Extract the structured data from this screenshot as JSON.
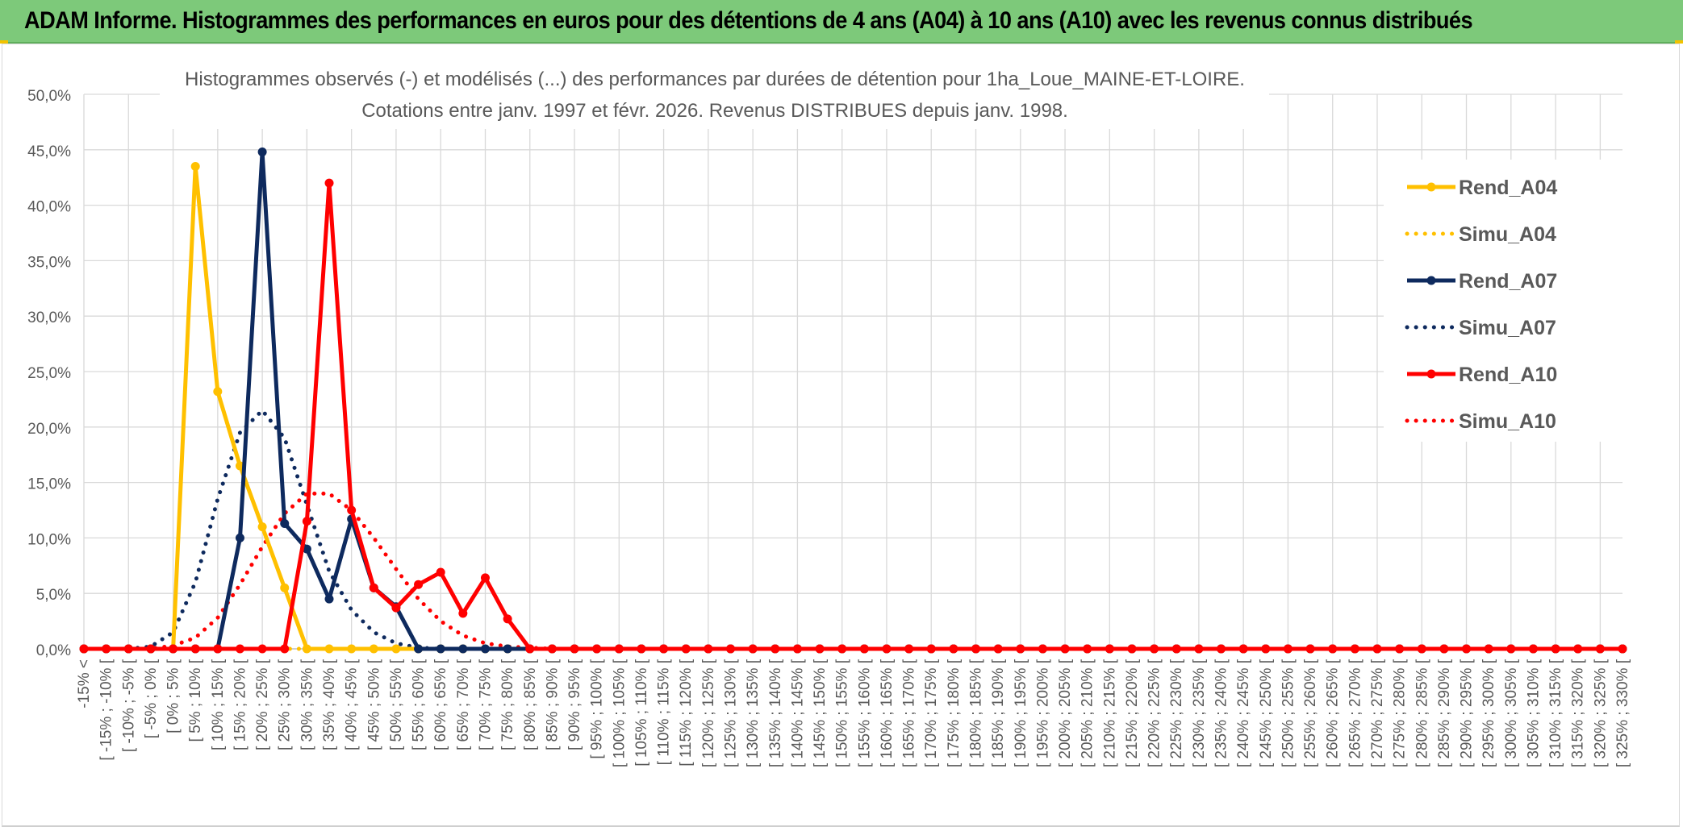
{
  "banner": {
    "title": "ADAM Informe. Histogrammes des performances en euros pour des détentions de 4 ans (A04) à 10 ans (A10) avec les revenus connus distribués"
  },
  "chart_data": {
    "type": "line",
    "title": "Histogrammes observés (-) et modélisés (...) des performances par durées de détention pour 1ha_Loue_MAINE-ET-LOIRE.",
    "subtitle": "Cotations entre janv. 1997 et févr. 2026.  Revenus DISTRIBUES depuis janv. 1998.",
    "xlabel": "",
    "ylabel": "",
    "ylim": [
      0,
      0.5
    ],
    "yticks": [
      "0,0%",
      "5,0%",
      "10,0%",
      "15,0%",
      "20,0%",
      "25,0%",
      "30,0%",
      "35,0%",
      "40,0%",
      "45,0%",
      "50,0%"
    ],
    "grid": true,
    "legend_position": "right",
    "categories": [
      "-15% <",
      "[ -15% ; -10% [",
      "[ -10% ; -5% [",
      "[ -5% ; 0% [",
      "[ 0% ; 5% [",
      "[ 5% ; 10% [",
      "[ 10% ; 15% [",
      "[ 15% ; 20% [",
      "[ 20% ; 25% [",
      "[ 25% ; 30% [",
      "[ 30% ; 35% [",
      "[ 35% ; 40% [",
      "[ 40% ; 45% [",
      "[ 45% ; 50% [",
      "[ 50% ; 55% [",
      "[ 55% ; 60% [",
      "[ 60% ; 65% [",
      "[ 65% ; 70% [",
      "[ 70% ; 75% [",
      "[ 75% ; 80% [",
      "[ 80% ; 85% [",
      "[ 85% ; 90% [",
      "[ 90% ; 95% [",
      "[ 95% ; 100% [",
      "[ 100% ; 105% [",
      "[ 105% ; 110% [",
      "[ 110% ; 115% [",
      "[ 115% ; 120% [",
      "[ 120% ; 125% [",
      "[ 125% ; 130% [",
      "[ 130% ; 135% [",
      "[ 135% ; 140% [",
      "[ 140% ; 145% [",
      "[ 145% ; 150% [",
      "[ 150% ; 155% [",
      "[ 155% ; 160% [",
      "[ 160% ; 165% [",
      "[ 165% ; 170% [",
      "[ 170% ; 175% [",
      "[ 175% ; 180% [",
      "[ 180% ; 185% [",
      "[ 185% ; 190% [",
      "[ 190% ; 195% [",
      "[ 195% ; 200% [",
      "[ 200% ; 205% [",
      "[ 205% ; 210% [",
      "[ 210% ; 215% [",
      "[ 215% ; 220% [",
      "[ 220% ; 225% [",
      "[ 225% ; 230% [",
      "[ 230% ; 235% [",
      "[ 235% ; 240% [",
      "[ 240% ; 245% [",
      "[ 245% ; 250% [",
      "[ 250% ; 255% [",
      "[ 255% ; 260% [",
      "[ 260% ; 265% [",
      "[ 265% ; 270% [",
      "[ 270% ; 275% [",
      "[ 275% ; 280% [",
      "[ 280% ; 285% [",
      "[ 285% ; 290% [",
      "[ 290% ; 295% [",
      "[ 295% ; 300% [",
      "[ 300% ; 305% [",
      "[ 305% ; 310% [",
      "[ 310% ; 315% [",
      "[ 315% ; 320% [",
      "[ 320% ; 325% [",
      "[ 325% ; 330% ["
    ],
    "series": [
      {
        "name": "Rend_A04",
        "style": "solid",
        "color": "#ffc000",
        "values": [
          0,
          0,
          0,
          0,
          0,
          0.435,
          0.232,
          0.165,
          0.11,
          0.055,
          0,
          0,
          0,
          0,
          0,
          0,
          0,
          0,
          0,
          0,
          0,
          0,
          0,
          0,
          0,
          0,
          0,
          0,
          0,
          0,
          0,
          0,
          0,
          0,
          0,
          0,
          0,
          0,
          0,
          0,
          0,
          0,
          0,
          0,
          0,
          0,
          0,
          0,
          0,
          0,
          0,
          0,
          0,
          0,
          0,
          0,
          0,
          0,
          0,
          0,
          0,
          0,
          0,
          0,
          0,
          0,
          0,
          0,
          0,
          0
        ]
      },
      {
        "name": "Simu_A04",
        "style": "dotted",
        "color": "#ffc000",
        "values": [
          0,
          0,
          0,
          0,
          0,
          0,
          0,
          0,
          0,
          0,
          0,
          0,
          0,
          0,
          0,
          0,
          0,
          0,
          0,
          0,
          0,
          0,
          0,
          0,
          0,
          0,
          0,
          0,
          0,
          0,
          0,
          0,
          0,
          0,
          0,
          0,
          0,
          0,
          0,
          0,
          0,
          0,
          0,
          0,
          0,
          0,
          0,
          0,
          0,
          0,
          0,
          0,
          0,
          0,
          0,
          0,
          0,
          0,
          0,
          0,
          0,
          0,
          0,
          0,
          0,
          0,
          0,
          0,
          0,
          0
        ]
      },
      {
        "name": "Rend_A07",
        "style": "solid",
        "color": "#0e2a5e",
        "values": [
          0,
          0,
          0,
          0,
          0,
          0,
          0,
          0.1,
          0.448,
          0.113,
          0.09,
          0.045,
          0.117,
          0.055,
          0.038,
          0,
          0,
          0,
          0,
          0,
          0,
          0,
          0,
          0,
          0,
          0,
          0,
          0,
          0,
          0,
          0,
          0,
          0,
          0,
          0,
          0,
          0,
          0,
          0,
          0,
          0,
          0,
          0,
          0,
          0,
          0,
          0,
          0,
          0,
          0,
          0,
          0,
          0,
          0,
          0,
          0,
          0,
          0,
          0,
          0,
          0,
          0,
          0,
          0,
          0,
          0,
          0,
          0,
          0,
          0
        ]
      },
      {
        "name": "Simu_A07",
        "style": "dotted",
        "color": "#0e2a5e",
        "values": [
          0,
          0,
          0,
          0.002,
          0.015,
          0.06,
          0.135,
          0.195,
          0.215,
          0.19,
          0.13,
          0.07,
          0.035,
          0.015,
          0.005,
          0.001,
          0,
          0,
          0,
          0,
          0,
          0,
          0,
          0,
          0,
          0,
          0,
          0,
          0,
          0,
          0,
          0,
          0,
          0,
          0,
          0,
          0,
          0,
          0,
          0,
          0,
          0,
          0,
          0,
          0,
          0,
          0,
          0,
          0,
          0,
          0,
          0,
          0,
          0,
          0,
          0,
          0,
          0,
          0,
          0,
          0,
          0,
          0,
          0,
          0,
          0,
          0,
          0,
          0,
          0
        ]
      },
      {
        "name": "Rend_A10",
        "style": "solid",
        "color": "#ff0000",
        "values": [
          0,
          0,
          0,
          0,
          0,
          0,
          0,
          0,
          0,
          0,
          0.115,
          0.42,
          0.125,
          0.055,
          0.037,
          0.058,
          0.069,
          0.032,
          0.064,
          0.027,
          0,
          0,
          0,
          0,
          0,
          0,
          0,
          0,
          0,
          0,
          0,
          0,
          0,
          0,
          0,
          0,
          0,
          0,
          0,
          0,
          0,
          0,
          0,
          0,
          0,
          0,
          0,
          0,
          0,
          0,
          0,
          0,
          0,
          0,
          0,
          0,
          0,
          0,
          0,
          0,
          0,
          0,
          0,
          0,
          0,
          0,
          0,
          0,
          0,
          0
        ]
      },
      {
        "name": "Simu_A10",
        "style": "dotted",
        "color": "#ff0000",
        "values": [
          0,
          0,
          0,
          0,
          0.003,
          0.01,
          0.028,
          0.058,
          0.092,
          0.122,
          0.14,
          0.14,
          0.125,
          0.1,
          0.072,
          0.045,
          0.025,
          0.012,
          0.005,
          0.002,
          0.001,
          0,
          0,
          0,
          0,
          0,
          0,
          0,
          0,
          0,
          0,
          0,
          0,
          0,
          0,
          0,
          0,
          0,
          0,
          0,
          0,
          0,
          0,
          0,
          0,
          0,
          0,
          0,
          0,
          0,
          0,
          0,
          0,
          0,
          0,
          0,
          0,
          0,
          0,
          0,
          0,
          0,
          0,
          0,
          0,
          0,
          0,
          0,
          0,
          0
        ]
      }
    ]
  }
}
